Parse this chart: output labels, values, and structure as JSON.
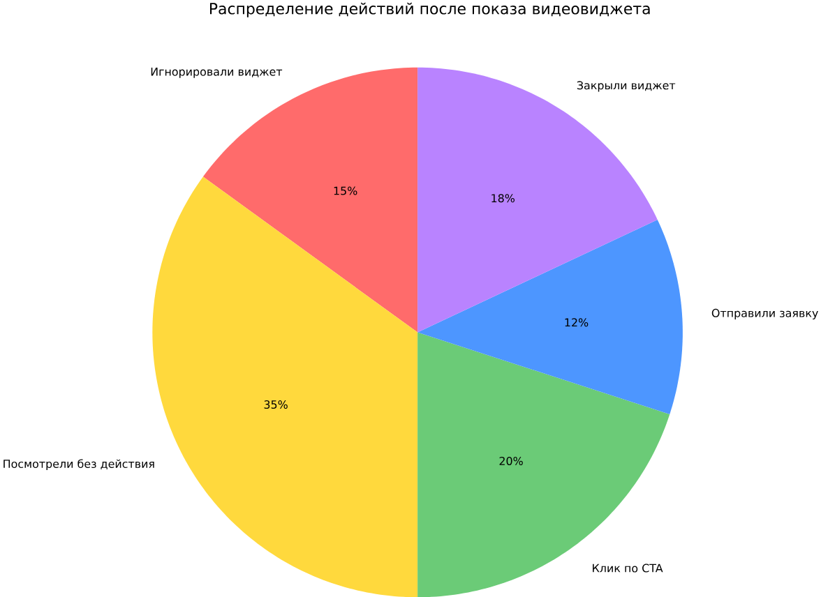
{
  "chart_data": {
    "type": "pie",
    "title": "Распределение действий после показа видеовиджета",
    "categories": [
      "Игнорировали виджет",
      "Посмотрели без действия",
      "Клик по CTA",
      "Отправили заявку",
      "Закрыли виджет"
    ],
    "values": [
      15,
      35,
      20,
      12,
      18
    ],
    "colors": [
      "#ff6b6b",
      "#ffd93d",
      "#6bcb77",
      "#4d96ff",
      "#b983ff"
    ],
    "value_labels": [
      "15%",
      "35%",
      "20%",
      "12%",
      "18%"
    ]
  }
}
